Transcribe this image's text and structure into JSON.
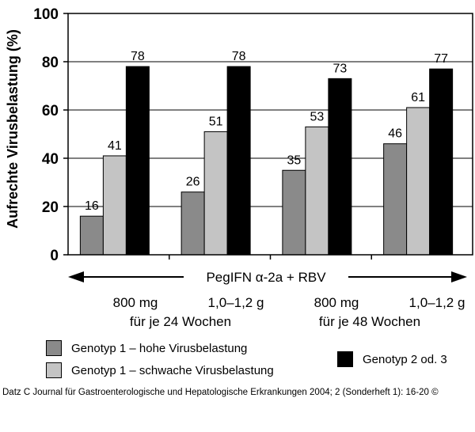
{
  "chart_data": {
    "type": "bar",
    "ylabel": "Aufrechte Virusbelastung (%)",
    "ylim": [
      0,
      100
    ],
    "yticks": [
      0,
      20,
      40,
      60,
      80,
      100
    ],
    "grid": "horizontal",
    "categories": [
      "800 mg\nfür je 24 Wochen",
      "1,0–1,2 g",
      "800 mg\nfür je 48 Wochen",
      "1,0–1,2 g"
    ],
    "series": [
      {
        "name": "Genotyp 1 – hohe Virusbelastung",
        "color": "#8a8a8a",
        "values": [
          16,
          26,
          35,
          46
        ]
      },
      {
        "name": "Genotyp 1 – schwache Virusbelastung",
        "color": "#c4c4c4",
        "values": [
          41,
          51,
          53,
          61
        ]
      },
      {
        "name": "Genotyp 2 od. 3",
        "color": "#000000",
        "values": [
          78,
          78,
          73,
          77
        ]
      }
    ],
    "axis_banner": "PegIFN α-2a + RBV",
    "group_labels": {
      "cat1_dose": "800 mg",
      "cat2_dose": "1,0–1,2 g",
      "cat3_dose": "800 mg",
      "cat4_dose": "1,0–1,2 g",
      "duration_24": "für je 24 Wochen",
      "duration_48": "für je 48 Wochen"
    }
  },
  "footer": "Datz C Journal für Gastroenterologische und Hepatologische Erkrankungen 2004; 2 (Sonderheft 1): 16-20 ©"
}
